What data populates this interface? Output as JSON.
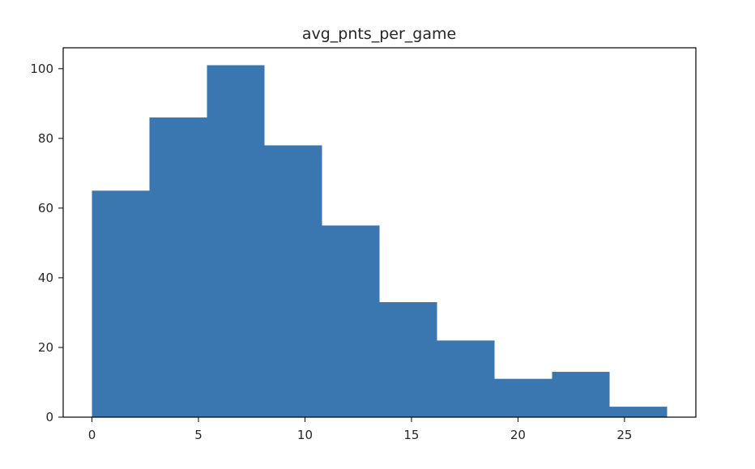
{
  "chart_data": {
    "type": "bar",
    "subtype": "histogram",
    "title": "avg_pnts_per_game",
    "xlabel": "",
    "ylabel": "",
    "bins": [
      {
        "x0": 0.0,
        "x1": 2.7,
        "count": 65
      },
      {
        "x0": 2.7,
        "x1": 5.4,
        "count": 86
      },
      {
        "x0": 5.4,
        "x1": 8.1,
        "count": 101
      },
      {
        "x0": 8.1,
        "x1": 10.8,
        "count": 78
      },
      {
        "x0": 10.8,
        "x1": 13.5,
        "count": 55
      },
      {
        "x0": 13.5,
        "x1": 16.2,
        "count": 33
      },
      {
        "x0": 16.2,
        "x1": 18.9,
        "count": 22
      },
      {
        "x0": 18.9,
        "x1": 21.6,
        "count": 11
      },
      {
        "x0": 21.6,
        "x1": 24.3,
        "count": 13
      },
      {
        "x0": 24.3,
        "x1": 27.0,
        "count": 3
      }
    ],
    "xlim": [
      -1.35,
      28.35
    ],
    "ylim": [
      0,
      106
    ],
    "xticks": [
      0,
      5,
      10,
      15,
      20,
      25
    ],
    "yticks": [
      0,
      20,
      40,
      60,
      80,
      100
    ],
    "grid": false,
    "bar_color": "#3a76af"
  }
}
